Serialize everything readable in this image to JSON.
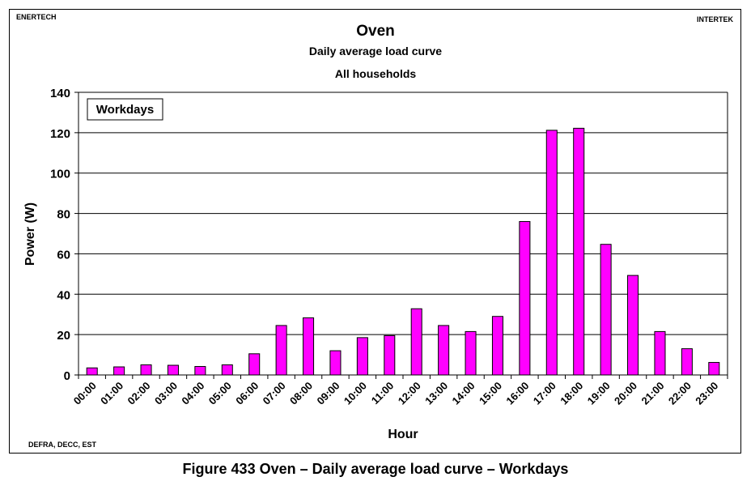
{
  "header": {
    "left_source": "ENERTECH",
    "right_source": "INTERTEK",
    "footer_source": "DEFRA, DECC, EST"
  },
  "caption": "Figure 433 Oven – Daily average load curve – Workdays",
  "chart_data": {
    "type": "bar",
    "title": "Oven",
    "subtitle": "Daily average load curve",
    "subtitle2": "All households",
    "legend_label": "Workdays",
    "legend_placement": "top-left",
    "xlabel": "Hour",
    "ylabel": "Power (W)",
    "ylim": [
      0,
      140
    ],
    "yticks": [
      0,
      20,
      40,
      60,
      80,
      100,
      120,
      140
    ],
    "grid": true,
    "bar_color": "#ff00ff",
    "categories": [
      "00:00",
      "01:00",
      "02:00",
      "03:00",
      "04:00",
      "05:00",
      "06:00",
      "07:00",
      "08:00",
      "09:00",
      "10:00",
      "11:00",
      "12:00",
      "13:00",
      "14:00",
      "15:00",
      "16:00",
      "17:00",
      "18:00",
      "19:00",
      "20:00",
      "21:00",
      "22:00",
      "23:00"
    ],
    "values": [
      3.5,
      4,
      5,
      4.8,
      4.2,
      5,
      10.5,
      24.5,
      28.3,
      12,
      18.5,
      19.5,
      32.8,
      24.5,
      21.5,
      29,
      76,
      121.2,
      122.2,
      64.7,
      49.3,
      21.5,
      13,
      6.2
    ]
  }
}
